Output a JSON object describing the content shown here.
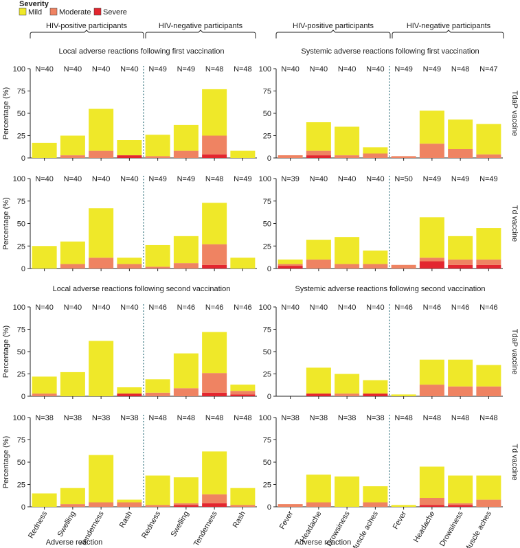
{
  "legend": {
    "title": "Severity",
    "items": [
      {
        "label": "Mild",
        "color": "#efe829"
      },
      {
        "label": "Moderate",
        "color": "#ef8362"
      },
      {
        "label": "Severe",
        "color": "#e3262f"
      }
    ]
  },
  "groups": {
    "hiv_positive": "HIV-positive participants",
    "hiv_negative": "HIV-negative participants"
  },
  "section_titles": {
    "local_first": "Local adverse reactions following first vaccination",
    "systemic_first": "Systemic adverse reactions following first vaccination",
    "local_second": "Local adverse reactions following second vaccination",
    "systemic_second": "Systemic adverse reactions following second vaccination"
  },
  "axis": {
    "ylabel": "Percentage (%)",
    "xlabel": "Adverse reaction",
    "yticks": [
      "0",
      "25",
      "50",
      "75",
      "100"
    ]
  },
  "row_labels": [
    "TdaP vaccine",
    "Td vaccine",
    "TdaP vaccine",
    "Td vaccine"
  ],
  "categories": {
    "local": [
      "Redness",
      "Swelling",
      "Tenderness",
      "Rash",
      "Redness",
      "Swelling",
      "Tenderness",
      "Rash"
    ],
    "systemic": [
      "Fever",
      "Headache",
      "Drowsiness",
      "Muscle aches",
      "Fever",
      "Headache",
      "Drowsiness",
      "Muscle aches"
    ]
  },
  "chart_data": [
    {
      "type": "bar",
      "stacked": true,
      "row": 0,
      "col": 0,
      "ylim": [
        0,
        100
      ],
      "n": [
        "N=40",
        "N=40",
        "N=40",
        "N=40",
        "N=49",
        "N=49",
        "N=48",
        "N=48"
      ],
      "series": [
        {
          "name": "Severe",
          "values": [
            0,
            0,
            0,
            3,
            0,
            0,
            4,
            0
          ]
        },
        {
          "name": "Moderate",
          "values": [
            0,
            3,
            8,
            0,
            2,
            8,
            21,
            0
          ]
        },
        {
          "name": "Mild",
          "values": [
            17,
            22,
            47,
            17,
            24,
            29,
            52,
            8
          ]
        }
      ]
    },
    {
      "type": "bar",
      "stacked": true,
      "row": 0,
      "col": 1,
      "ylim": [
        0,
        100
      ],
      "n": [
        "N=40",
        "N=40",
        "N=40",
        "N=40",
        "N=49",
        "N=49",
        "N=48",
        "N=47"
      ],
      "series": [
        {
          "name": "Severe",
          "values": [
            0,
            3,
            0,
            0,
            0,
            0,
            0,
            0
          ]
        },
        {
          "name": "Moderate",
          "values": [
            3,
            5,
            3,
            5,
            2,
            16,
            10,
            4
          ]
        },
        {
          "name": "Mild",
          "values": [
            0,
            32,
            32,
            7,
            0,
            37,
            33,
            34
          ]
        }
      ]
    },
    {
      "type": "bar",
      "stacked": true,
      "row": 1,
      "col": 0,
      "ylim": [
        0,
        100
      ],
      "n": [
        "N=40",
        "N=40",
        "N=40",
        "N=40",
        "N=49",
        "N=49",
        "N=48",
        "N=49"
      ],
      "series": [
        {
          "name": "Severe",
          "values": [
            0,
            0,
            0,
            0,
            0,
            0,
            4,
            0
          ]
        },
        {
          "name": "Moderate",
          "values": [
            0,
            5,
            12,
            5,
            2,
            6,
            23,
            0
          ]
        },
        {
          "name": "Mild",
          "values": [
            25,
            25,
            55,
            7,
            24,
            30,
            46,
            12
          ]
        }
      ]
    },
    {
      "type": "bar",
      "stacked": true,
      "row": 1,
      "col": 1,
      "ylim": [
        0,
        100
      ],
      "n": [
        "N=39",
        "N=40",
        "N=40",
        "N=40",
        "N=50",
        "N=49",
        "N=49",
        "N=49"
      ],
      "series": [
        {
          "name": "Severe",
          "values": [
            3,
            0,
            0,
            0,
            0,
            8,
            4,
            4
          ]
        },
        {
          "name": "Moderate",
          "values": [
            2,
            10,
            5,
            5,
            4,
            4,
            6,
            6
          ]
        },
        {
          "name": "Mild",
          "values": [
            5,
            22,
            30,
            15,
            0,
            45,
            26,
            35
          ]
        }
      ]
    },
    {
      "type": "bar",
      "stacked": true,
      "row": 2,
      "col": 0,
      "ylim": [
        0,
        100
      ],
      "n": [
        "N=40",
        "N=40",
        "N=40",
        "N=40",
        "N=46",
        "N=46",
        "N=46",
        "N=46"
      ],
      "series": [
        {
          "name": "Severe",
          "values": [
            0,
            0,
            0,
            3,
            0,
            0,
            4,
            2
          ]
        },
        {
          "name": "Moderate",
          "values": [
            3,
            0,
            0,
            0,
            4,
            9,
            22,
            4
          ]
        },
        {
          "name": "Mild",
          "values": [
            19,
            27,
            62,
            7,
            15,
            39,
            46,
            7
          ]
        }
      ]
    },
    {
      "type": "bar",
      "stacked": true,
      "row": 2,
      "col": 1,
      "ylim": [
        0,
        100
      ],
      "n": [
        "N=40",
        "N=40",
        "N=40",
        "N=40",
        "N=46",
        "N=46",
        "N=46",
        "N=46"
      ],
      "series": [
        {
          "name": "Severe",
          "values": [
            0,
            3,
            0,
            3,
            0,
            0,
            0,
            0
          ]
        },
        {
          "name": "Moderate",
          "values": [
            0,
            0,
            3,
            0,
            0,
            13,
            11,
            11
          ]
        },
        {
          "name": "Mild",
          "values": [
            0,
            29,
            22,
            15,
            2,
            28,
            30,
            24
          ]
        }
      ]
    },
    {
      "type": "bar",
      "stacked": true,
      "row": 3,
      "col": 0,
      "ylim": [
        0,
        100
      ],
      "n": [
        "N=38",
        "N=38",
        "N=38",
        "N=38",
        "N=48",
        "N=48",
        "N=48",
        "N=48"
      ],
      "series": [
        {
          "name": "Severe",
          "values": [
            0,
            0,
            0,
            0,
            0,
            2,
            4,
            0
          ]
        },
        {
          "name": "Moderate",
          "values": [
            0,
            3,
            5,
            5,
            2,
            2,
            10,
            2
          ]
        },
        {
          "name": "Mild",
          "values": [
            15,
            18,
            53,
            3,
            33,
            29,
            48,
            19
          ]
        }
      ]
    },
    {
      "type": "bar",
      "stacked": true,
      "row": 3,
      "col": 1,
      "ylim": [
        0,
        100
      ],
      "n": [
        "N=38",
        "N=38",
        "N=38",
        "N=38",
        "N=48",
        "N=48",
        "N=48",
        "N=48"
      ],
      "series": [
        {
          "name": "Severe",
          "values": [
            0,
            0,
            0,
            0,
            0,
            2,
            2,
            0
          ]
        },
        {
          "name": "Moderate",
          "values": [
            3,
            5,
            0,
            5,
            0,
            8,
            2,
            8
          ]
        },
        {
          "name": "Mild",
          "values": [
            0,
            31,
            34,
            18,
            2,
            35,
            31,
            27
          ]
        }
      ]
    }
  ]
}
